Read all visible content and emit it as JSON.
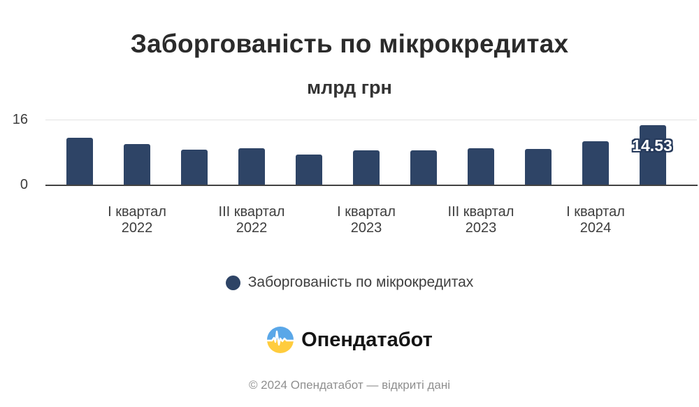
{
  "title": "Заборгованість по мікрокредитах",
  "subtitle": "млрд грн",
  "chart_data": {
    "type": "bar",
    "title": "Заборгованість по мікрокредитах",
    "ylabel": "млрд грн",
    "ylim": [
      0,
      16
    ],
    "y_tick_top": "16",
    "y_tick_bottom": "0",
    "grid": "top gridline only",
    "bar_color": "#2e4466",
    "legend_position": "bottom",
    "series": [
      {
        "name": "Заборгованість по мікрокредитах",
        "values": [
          11.4,
          9.9,
          8.5,
          8.8,
          7.4,
          8.3,
          8.3,
          8.8,
          8.7,
          10.5,
          14.53
        ]
      }
    ],
    "x_tick_labels": [
      [
        "І квартал",
        "2022"
      ],
      [
        "ІІІ квартал",
        "2022"
      ],
      [
        "І квартал",
        "2023"
      ],
      [
        "ІІІ квартал",
        "2023"
      ],
      [
        "І квартал",
        "2024"
      ]
    ],
    "x_tick_bar_indices": [
      1,
      3,
      5,
      7,
      9
    ],
    "data_labels": [
      {
        "bar_index": 10,
        "text": "14.53"
      }
    ]
  },
  "legend": {
    "label": "Заборгованість по мікрокредитах",
    "marker_color": "#2e4466"
  },
  "logo": {
    "text": "Опендатабот",
    "blue": "#5aa7e8",
    "yellow": "#ffcc3d"
  },
  "footer": {
    "text": "© 2024 Опендатабот — відкриті дані"
  }
}
